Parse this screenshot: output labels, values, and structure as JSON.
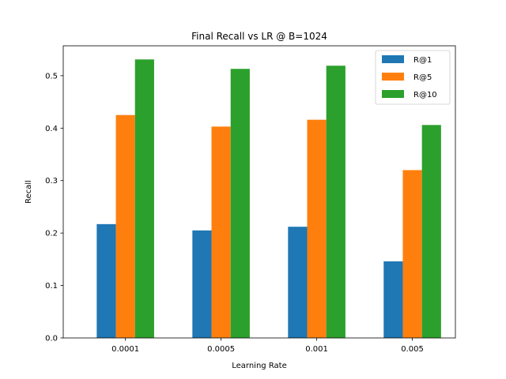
{
  "chart_data": {
    "type": "bar",
    "title": "Final Recall vs LR @ B=1024",
    "xlabel": "Learning Rate",
    "ylabel": "Recall",
    "categories": [
      "0.0001",
      "0.0005",
      "0.001",
      "0.005"
    ],
    "series": [
      {
        "name": "R@1",
        "color": "#1f77b4",
        "values": [
          0.217,
          0.205,
          0.212,
          0.146
        ]
      },
      {
        "name": "R@5",
        "color": "#ff7f0e",
        "values": [
          0.425,
          0.403,
          0.416,
          0.32
        ]
      },
      {
        "name": "R@10",
        "color": "#2ca02c",
        "values": [
          0.531,
          0.513,
          0.519,
          0.406
        ]
      }
    ],
    "ylim": [
      0,
      0.557
    ],
    "yticks": [
      "0.0",
      "0.1",
      "0.2",
      "0.3",
      "0.4",
      "0.5"
    ],
    "grid": false,
    "legend_position": "top-right"
  }
}
